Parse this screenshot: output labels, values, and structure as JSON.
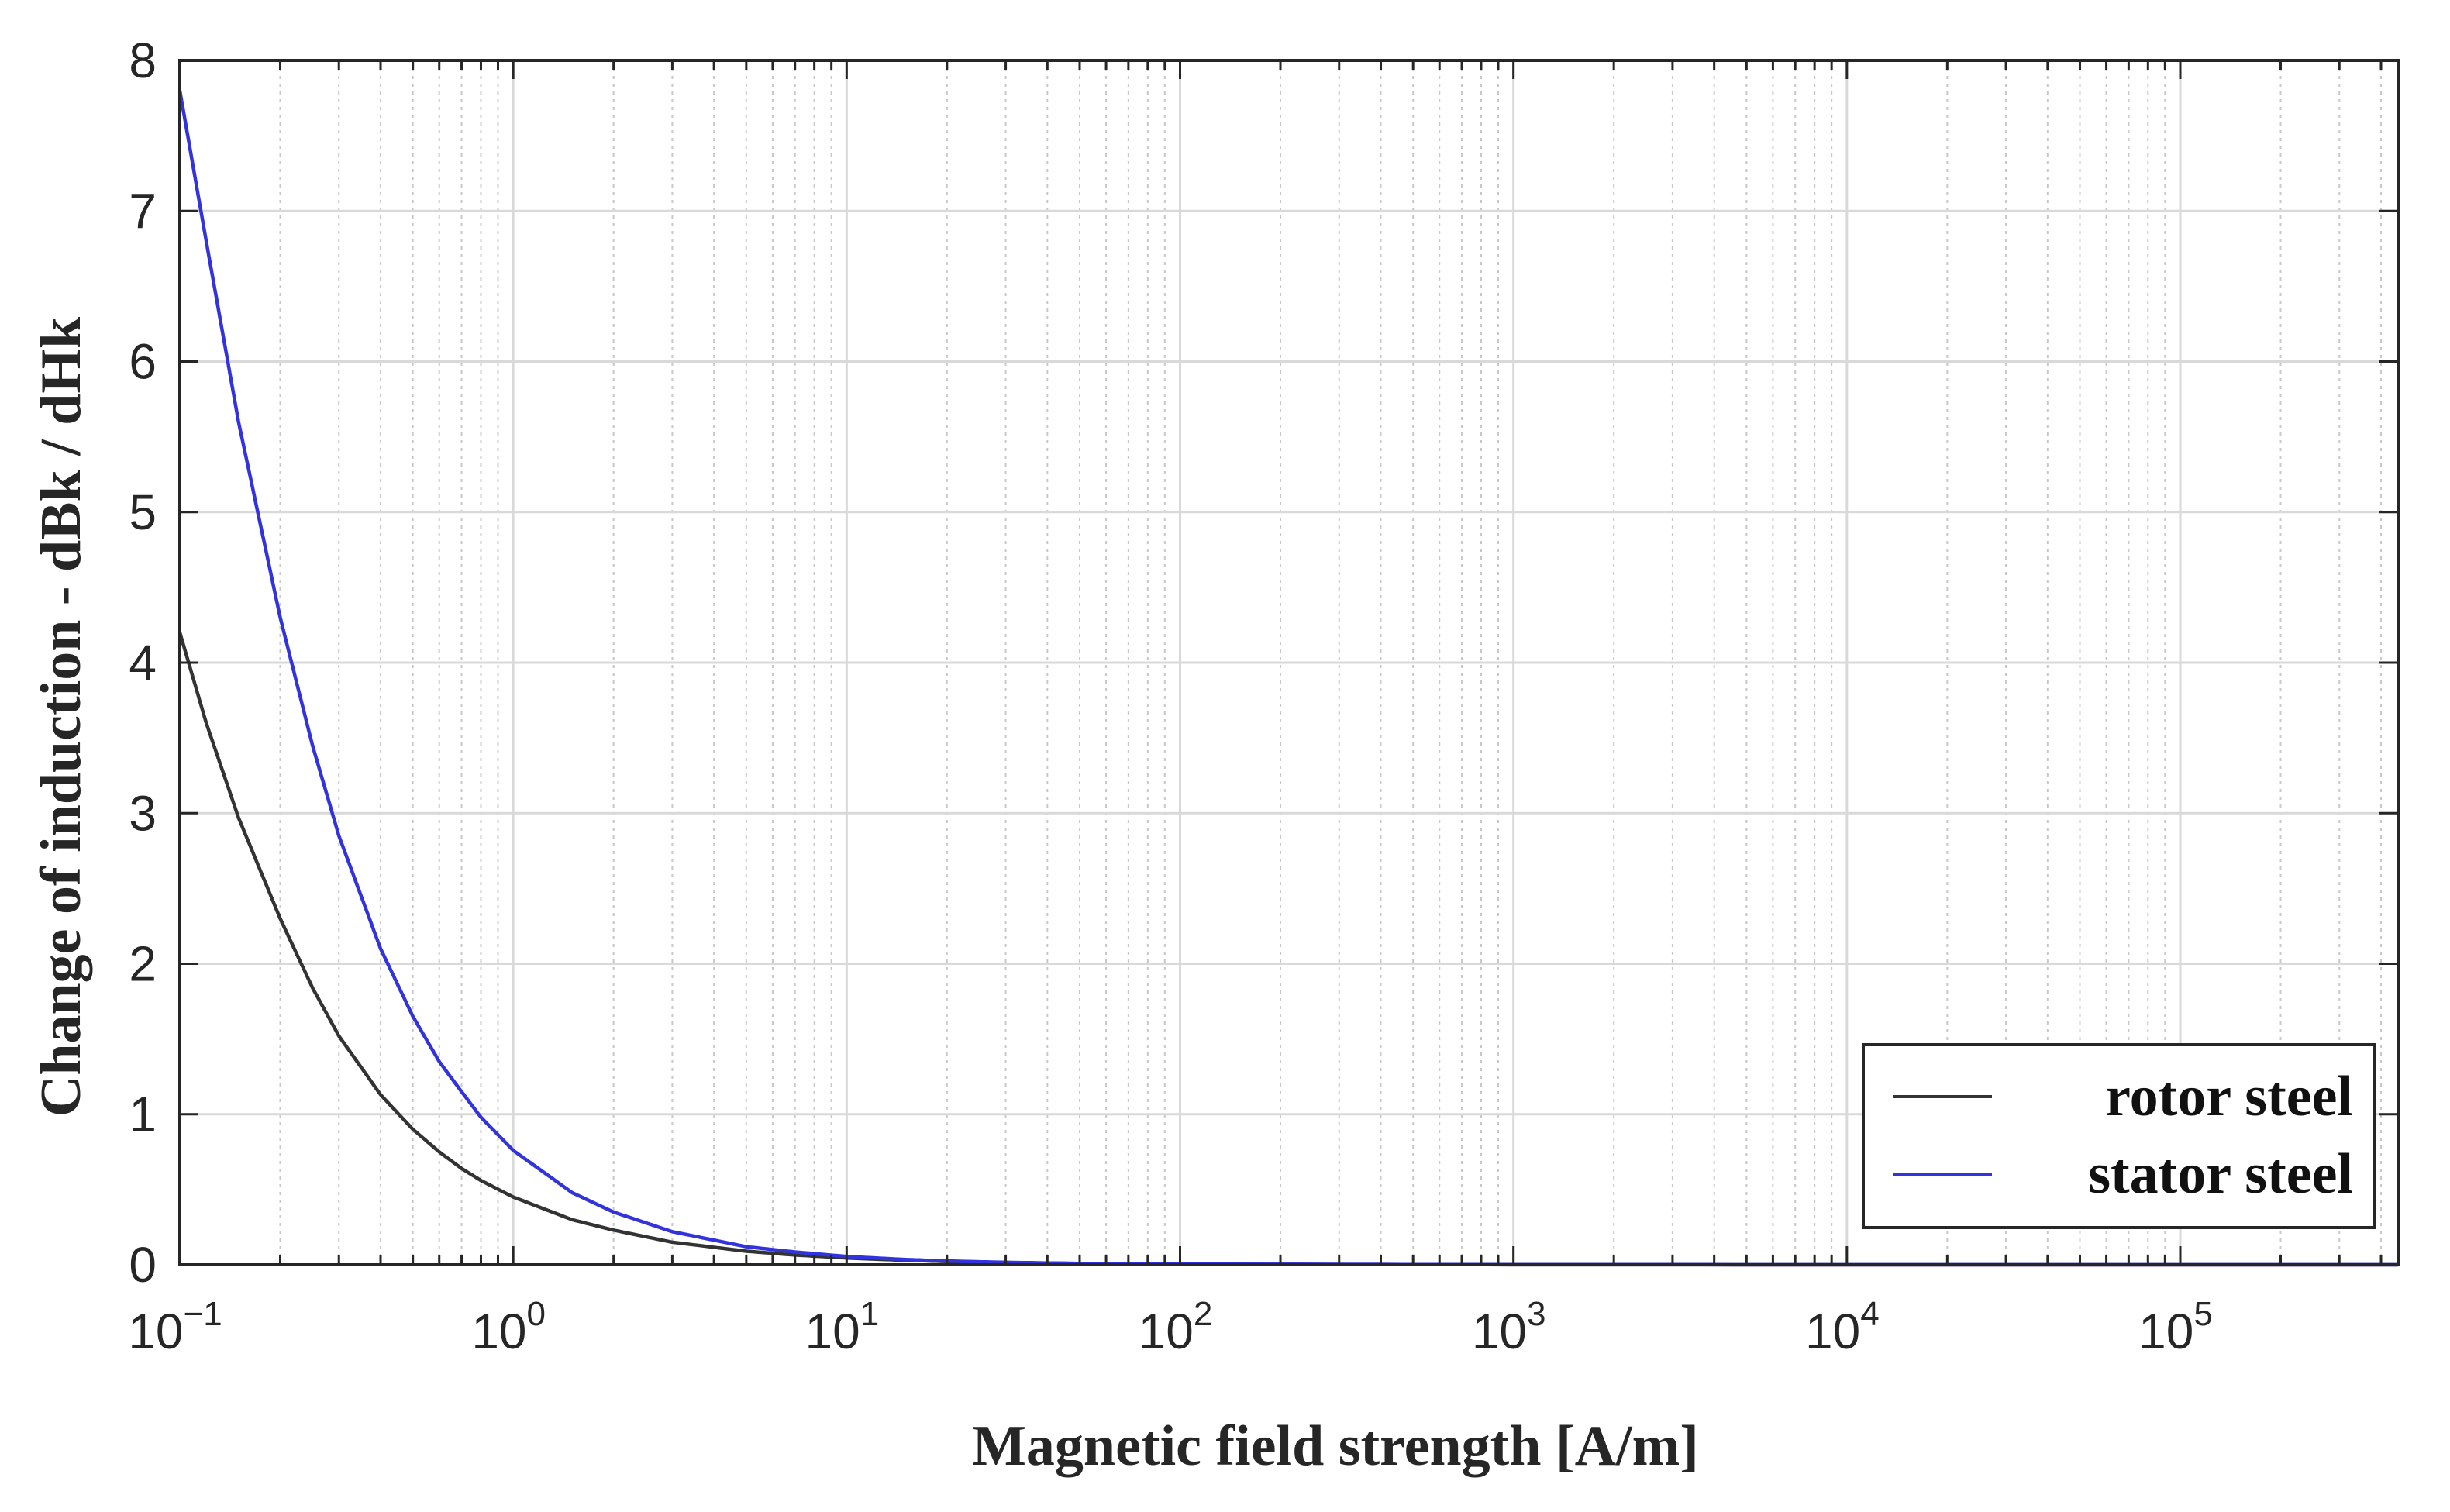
{
  "chart_data": {
    "type": "line",
    "xscale": "log",
    "xlabel": "Magnetic field strength [A/m]",
    "ylabel": "Change of induction - dBk / dHk",
    "xlim": [
      0.1,
      450000
    ],
    "ylim": [
      0,
      8
    ],
    "grid": true,
    "legend_position": "bottom-right",
    "x_ticks": [
      {
        "value": 0.1,
        "base": "10",
        "exp": "−1"
      },
      {
        "value": 1,
        "base": "10",
        "exp": "0"
      },
      {
        "value": 10,
        "base": "10",
        "exp": "1"
      },
      {
        "value": 100,
        "base": "10",
        "exp": "2"
      },
      {
        "value": 1000,
        "base": "10",
        "exp": "3"
      },
      {
        "value": 10000,
        "base": "10",
        "exp": "4"
      },
      {
        "value": 100000,
        "base": "10",
        "exp": "5"
      }
    ],
    "y_ticks": [
      0,
      1,
      2,
      3,
      4,
      5,
      6,
      7,
      8
    ],
    "series": [
      {
        "name": "rotor steel",
        "color": "#333333",
        "x": [
          0.1,
          0.12,
          0.15,
          0.2,
          0.25,
          0.3,
          0.4,
          0.5,
          0.6,
          0.7,
          0.8,
          1,
          1.5,
          2,
          3,
          5,
          7,
          10,
          15,
          20,
          30,
          50,
          100,
          1000,
          10000,
          100000,
          450000
        ],
        "values": [
          4.2,
          3.6,
          2.97,
          2.3,
          1.84,
          1.52,
          1.13,
          0.9,
          0.75,
          0.64,
          0.56,
          0.45,
          0.3,
          0.23,
          0.15,
          0.09,
          0.065,
          0.045,
          0.03,
          0.022,
          0.015,
          0.009,
          0.004,
          0.0005,
          0.0001,
          0.0,
          0.0
        ]
      },
      {
        "name": "stator steel",
        "color": "#3333dd",
        "x": [
          0.1,
          0.12,
          0.15,
          0.2,
          0.25,
          0.3,
          0.4,
          0.5,
          0.6,
          0.7,
          0.8,
          1,
          1.5,
          2,
          3,
          5,
          7,
          10,
          15,
          20,
          30,
          50,
          100,
          1000,
          10000,
          100000,
          450000
        ],
        "values": [
          7.8,
          6.8,
          5.6,
          4.3,
          3.45,
          2.85,
          2.1,
          1.65,
          1.35,
          1.15,
          0.98,
          0.76,
          0.48,
          0.35,
          0.22,
          0.12,
          0.085,
          0.055,
          0.035,
          0.025,
          0.016,
          0.009,
          0.004,
          0.0005,
          0.0001,
          0.0,
          0.0
        ]
      }
    ]
  }
}
